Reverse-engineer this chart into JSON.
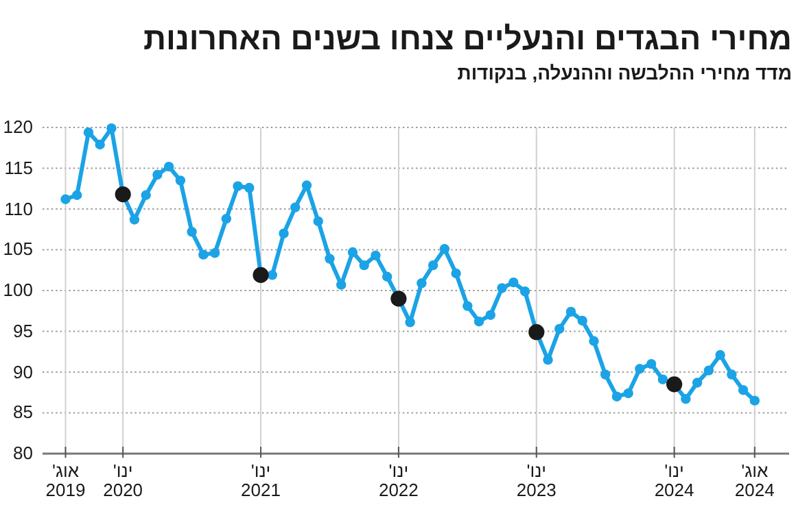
{
  "chart_data": {
    "type": "line",
    "title": "מחירי הבגדים והנעליים צנחו בשנים האחרונות",
    "subtitle": "מדד מחירי ההלבשה וההנעלה, בנקודות",
    "series": [
      {
        "color": "#1ba3e6",
        "marker": "circle",
        "x": [
          "2019-08",
          "2019-09",
          "2019-10",
          "2019-11",
          "2019-12",
          "2020-01",
          "2020-02",
          "2020-03",
          "2020-04",
          "2020-05",
          "2020-06",
          "2020-07",
          "2020-08",
          "2020-09",
          "2020-10",
          "2020-11",
          "2020-12",
          "2021-01",
          "2021-02",
          "2021-03",
          "2021-04",
          "2021-05",
          "2021-06",
          "2021-07",
          "2021-08",
          "2021-09",
          "2021-10",
          "2021-11",
          "2021-12",
          "2022-01",
          "2022-02",
          "2022-03",
          "2022-04",
          "2022-05",
          "2022-06",
          "2022-07",
          "2022-08",
          "2022-09",
          "2022-10",
          "2022-11",
          "2022-12",
          "2023-01",
          "2023-02",
          "2023-03",
          "2023-04",
          "2023-05",
          "2023-06",
          "2023-07",
          "2023-08",
          "2023-09",
          "2023-10",
          "2023-11",
          "2023-12",
          "2024-01",
          "2024-02",
          "2024-03",
          "2024-04",
          "2024-05",
          "2024-06",
          "2024-07",
          "2024-08"
        ],
        "values": [
          111.2,
          111.7,
          119.4,
          117.9,
          119.9,
          111.8,
          108.7,
          111.7,
          114.2,
          115.2,
          113.5,
          107.2,
          104.4,
          104.6,
          108.8,
          112.8,
          112.6,
          101.9,
          101.9,
          107.0,
          110.2,
          112.9,
          108.5,
          103.9,
          100.7,
          104.7,
          103.1,
          104.3,
          101.7,
          99.0,
          96.1,
          100.9,
          103.1,
          105.1,
          102.1,
          98.1,
          96.2,
          97.0,
          100.3,
          101.0,
          99.9,
          94.9,
          91.5,
          95.3,
          97.4,
          96.3,
          93.8,
          89.7,
          87.0,
          87.4,
          90.4,
          91.0,
          89.1,
          88.5,
          86.7,
          88.7,
          90.2,
          92.1,
          89.7,
          87.8,
          86.5
        ]
      },
      {
        "type": "scatter",
        "color": "#1a1a1a",
        "marker": "circle",
        "x": [
          "2020-01",
          "2021-01",
          "2022-01",
          "2023-01",
          "2024-01"
        ],
        "values": [
          111.8,
          101.9,
          99.0,
          94.9,
          88.5
        ]
      }
    ],
    "xlim": [
      "2019-06",
      "2024-11"
    ],
    "xticks": [
      {
        "value": "2019-08",
        "label": "אוג' 2019"
      },
      {
        "value": "2020-01",
        "label": "ינו' 2020"
      },
      {
        "value": "2021-01",
        "label": "ינו' 2021"
      },
      {
        "value": "2022-01",
        "label": "ינו' 2022"
      },
      {
        "value": "2023-01",
        "label": "ינו' 2023"
      },
      {
        "value": "2024-01",
        "label": "ינו' 2024"
      },
      {
        "value": "2024-08",
        "label": "אוג' 2024"
      }
    ],
    "ylim": [
      80,
      120
    ],
    "yticks": [
      80,
      85,
      90,
      95,
      100,
      105,
      110,
      115,
      120
    ],
    "grid": true
  }
}
